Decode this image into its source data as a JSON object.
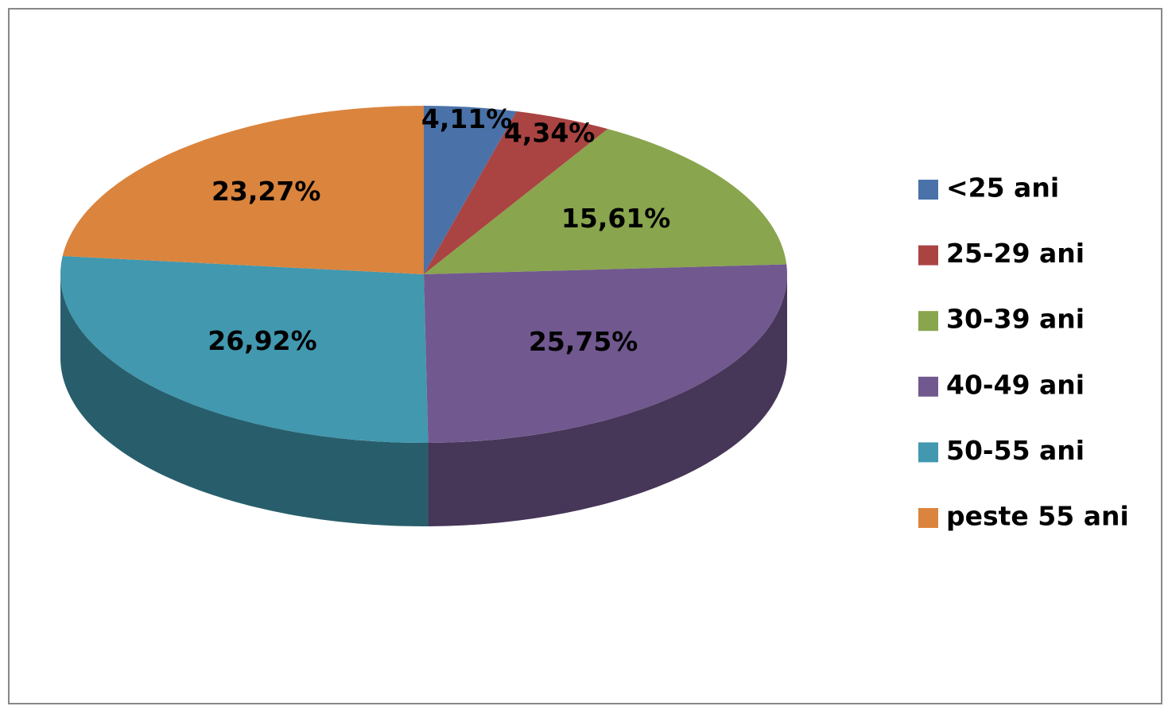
{
  "chart_data": {
    "type": "pie",
    "categories": [
      "<25 ani",
      "25-29 ani",
      "30-39 ani",
      "40-49 ani",
      "50-55 ani",
      "peste 55 ani"
    ],
    "values": [
      4.11,
      4.34,
      15.61,
      25.75,
      26.92,
      23.27
    ],
    "value_labels": [
      "4,11%",
      "4,34%",
      "15,61%",
      "25,75%",
      "26,92%",
      "23,27%"
    ],
    "colors": [
      "#4a72a8",
      "#aa4442",
      "#89a54e",
      "#71588f",
      "#4198af",
      "#db843d"
    ],
    "legend": "right"
  }
}
